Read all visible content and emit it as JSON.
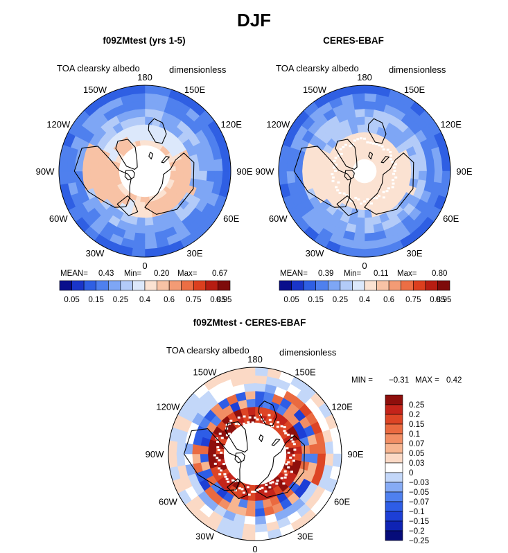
{
  "figure": {
    "title": "DJF"
  },
  "colors": {
    "abs_palette": [
      "#0a0e8c",
      "#1a35c9",
      "#2f5fe3",
      "#4f80ee",
      "#7ea6f5",
      "#b3cbf8",
      "#dce8fb",
      "#fbe2d2",
      "#f8c2a5",
      "#f39b75",
      "#ec6e44",
      "#dc3f1e",
      "#b71d12",
      "#7e0b0a"
    ],
    "diff_palette": [
      "#060c7a",
      "#0f23b4",
      "#1d3fd6",
      "#2e5de6",
      "#4f80ef",
      "#86abf5",
      "#c3d7f9",
      "#ffffff",
      "#fbd9c5",
      "#f7b590",
      "#f28e64",
      "#ea6a40",
      "#dd4525",
      "#c4241a",
      "#8e0f0c"
    ]
  },
  "chart_data": [
    {
      "type": "heatmap",
      "title": "f09ZMtest (yrs 1-5)",
      "variable": "TOA clearsky albedo",
      "units": "dimensionless",
      "projection": "north-polar-stereographic",
      "lon_labels": [
        "180",
        "150E",
        "120E",
        "90E",
        "60E",
        "30E",
        "0",
        "30W",
        "60W",
        "90W",
        "120W",
        "150W"
      ],
      "stats": {
        "mean_label": "MEAN=",
        "mean": "0.43",
        "min_label": "Min=",
        "min": "0.20",
        "max_label": "Max=",
        "max": "0.67"
      },
      "colorbar_ticks": [
        "0.05",
        "0.15",
        "0.25",
        "0.4",
        "0.6",
        "0.75",
        "0.85",
        "0.95"
      ],
      "colorbar_levels": [
        0.05,
        0.1,
        0.15,
        0.2,
        0.25,
        0.3,
        0.4,
        0.5,
        0.6,
        0.7,
        0.75,
        0.8,
        0.85,
        0.9,
        0.95
      ],
      "colorbar_orientation": "horizontal",
      "missing_pole": true
    },
    {
      "type": "heatmap",
      "title": "CERES-EBAF",
      "variable": "TOA clearsky albedo",
      "units": "dimensionless",
      "projection": "north-polar-stereographic",
      "lon_labels": [
        "180",
        "150E",
        "120E",
        "90E",
        "60E",
        "30E",
        "0",
        "30W",
        "60W",
        "90W",
        "120W",
        "150W"
      ],
      "stats": {
        "mean_label": "MEAN=",
        "mean": "0.39",
        "min_label": "Min=",
        "min": "0.11",
        "max_label": "Max=",
        "max": "0.80"
      },
      "colorbar_ticks": [
        "0.05",
        "0.15",
        "0.25",
        "0.4",
        "0.6",
        "0.75",
        "0.85",
        "0.95"
      ],
      "colorbar_levels": [
        0.05,
        0.1,
        0.15,
        0.2,
        0.25,
        0.3,
        0.4,
        0.5,
        0.6,
        0.7,
        0.75,
        0.8,
        0.85,
        0.9,
        0.95
      ],
      "colorbar_orientation": "horizontal",
      "missing_pole": true
    },
    {
      "type": "heatmap",
      "title": "f09ZMtest - CERES-EBAF",
      "variable": "TOA clearsky albedo",
      "units": "dimensionless",
      "projection": "north-polar-stereographic",
      "lon_labels": [
        "180",
        "150E",
        "120E",
        "90E",
        "60E",
        "30E",
        "0",
        "30W",
        "60W",
        "90W",
        "120W",
        "150W"
      ],
      "stats": {
        "min_label": "MIN =",
        "min": "−0.31",
        "max_label": "MAX =",
        "max": "0.42"
      },
      "colorbar_ticks": [
        "0.25",
        "0.2",
        "0.15",
        "0.1",
        "0.07",
        "0.05",
        "0.03",
        "0",
        "−0.03",
        "−0.05",
        "−0.07",
        "−0.1",
        "−0.15",
        "−0.2",
        "−0.25"
      ],
      "colorbar_levels": [
        -0.25,
        -0.2,
        -0.15,
        -0.1,
        -0.07,
        -0.05,
        -0.03,
        0,
        0.03,
        0.05,
        0.07,
        0.1,
        0.15,
        0.2,
        0.25
      ],
      "colorbar_orientation": "vertical",
      "missing_pole": true
    }
  ]
}
